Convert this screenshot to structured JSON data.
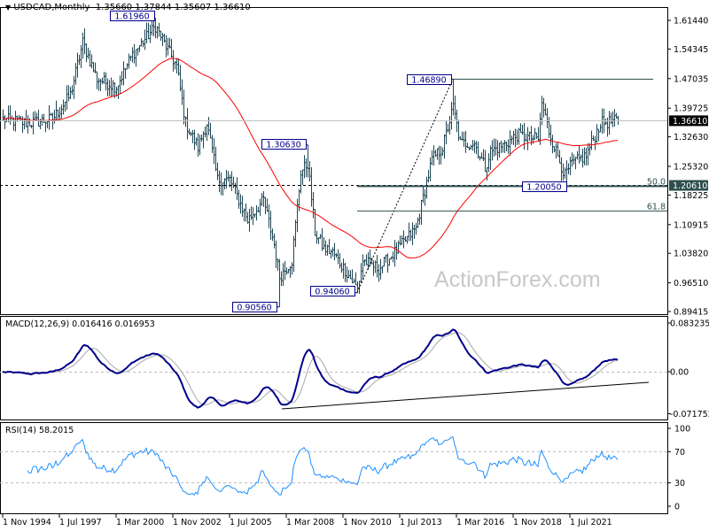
{
  "header": {
    "arrow": "▼",
    "symbol": "USDCAD,Monthly",
    "ohlc": "1.35660 1.37844 1.35607 1.36610"
  },
  "watermark": "ActionForex.com",
  "colors": {
    "bars": "#1f4654",
    "ma": "#ff0000",
    "macd": "#00008b",
    "signal": "#a9a9a9",
    "rsi": "#1e90ff",
    "label_border": "#00008b",
    "level_bg": "#2f4f4f"
  },
  "chart_data": [
    {
      "type": "ohlc",
      "title": "USDCAD,Monthly",
      "ylim": [
        0.89415,
        1.6144
      ],
      "yticks": [
        "1.61440",
        "1.54345",
        "1.47035",
        "1.39725",
        "1.32630",
        "1.25320",
        "1.18225",
        "1.10915",
        "1.03820",
        "0.96510",
        "0.89415"
      ],
      "xticks": [
        "1 Nov 1994",
        "1 Jul 1997",
        "1 Mar 2000",
        "1 Nov 2002",
        "1 Jul 2005",
        "1 Mar 2008",
        "1 Nov 2010",
        "1 Jul 2013",
        "1 Mar 2016",
        "1 Nov 2018",
        "1 Jul 2021"
      ],
      "current_price": "1.36610",
      "level_price": "1.20610",
      "close_approx": [
        [
          "1994-11",
          1.37
        ],
        [
          "1996-01",
          1.36
        ],
        [
          "1997-03",
          1.37
        ],
        [
          "1998-01",
          1.43
        ],
        [
          "1998-08",
          1.56
        ],
        [
          "1999-04",
          1.47
        ],
        [
          "2000-03",
          1.45
        ],
        [
          "2000-12",
          1.53
        ],
        [
          "2002-01",
          1.6
        ],
        [
          "2003-01",
          1.5
        ],
        [
          "2003-06",
          1.36
        ],
        [
          "2004-01",
          1.3
        ],
        [
          "2004-06",
          1.36
        ],
        [
          "2004-12",
          1.22
        ],
        [
          "2005-07",
          1.22
        ],
        [
          "2006-05",
          1.12
        ],
        [
          "2007-02",
          1.17
        ],
        [
          "2007-08",
          1.06
        ],
        [
          "2007-11",
          0.98
        ],
        [
          "2008-06",
          1.02
        ],
        [
          "2008-11",
          1.24
        ],
        [
          "2009-03",
          1.26
        ],
        [
          "2009-07",
          1.09
        ],
        [
          "2009-12",
          1.05
        ],
        [
          "2010-05",
          1.04
        ],
        [
          "2011-01",
          0.99
        ],
        [
          "2011-07",
          0.95
        ],
        [
          "2011-10",
          1.02
        ],
        [
          "2012-07",
          1.0
        ],
        [
          "2013-06",
          1.05
        ],
        [
          "2014-04",
          1.1
        ],
        [
          "2015-01",
          1.27
        ],
        [
          "2015-07",
          1.3
        ],
        [
          "2016-01",
          1.4
        ],
        [
          "2016-05",
          1.31
        ],
        [
          "2017-01",
          1.31
        ],
        [
          "2017-07",
          1.25
        ],
        [
          "2017-10",
          1.29
        ],
        [
          "2018-07",
          1.31
        ],
        [
          "2019-01",
          1.33
        ],
        [
          "2020-01",
          1.32
        ],
        [
          "2020-03",
          1.41
        ],
        [
          "2020-07",
          1.34
        ],
        [
          "2021-04",
          1.23
        ],
        [
          "2021-08",
          1.26
        ],
        [
          "2022-04",
          1.28
        ],
        [
          "2022-12",
          1.36
        ],
        [
          "2023-10",
          1.366
        ]
      ],
      "pivots": [
        {
          "label": "1.61960",
          "date": "2002-01",
          "price": 1.6196
        },
        {
          "label": "1.30630",
          "date": "2009-03",
          "price": 1.3063
        },
        {
          "label": "0.90560",
          "date": "2007-11",
          "price": 0.9056
        },
        {
          "label": "0.94060",
          "date": "2011-07",
          "price": 0.9406
        },
        {
          "label": "1.46890",
          "date": "2016-01",
          "price": 1.4689
        },
        {
          "label": "1.20050",
          "date": "2021-05",
          "price": 1.2005
        }
      ],
      "fib_levels": [
        {
          "label": "50.0",
          "price": 1.2053
        },
        {
          "label": "61.8",
          "price": 1.1439
        }
      ],
      "resistance": 1.4689
    },
    {
      "type": "line",
      "title": "MACD(12,26,9) 0.016416 0.016953",
      "ylim": [
        -0.071752,
        0.083235
      ],
      "yticks": [
        "0.083235",
        "0.00",
        "-0.071752"
      ]
    },
    {
      "type": "line",
      "title": "RSI(14) 58.2015",
      "ylim": [
        0,
        100
      ],
      "yticks": [
        "100",
        "70",
        "30",
        "0"
      ]
    }
  ]
}
